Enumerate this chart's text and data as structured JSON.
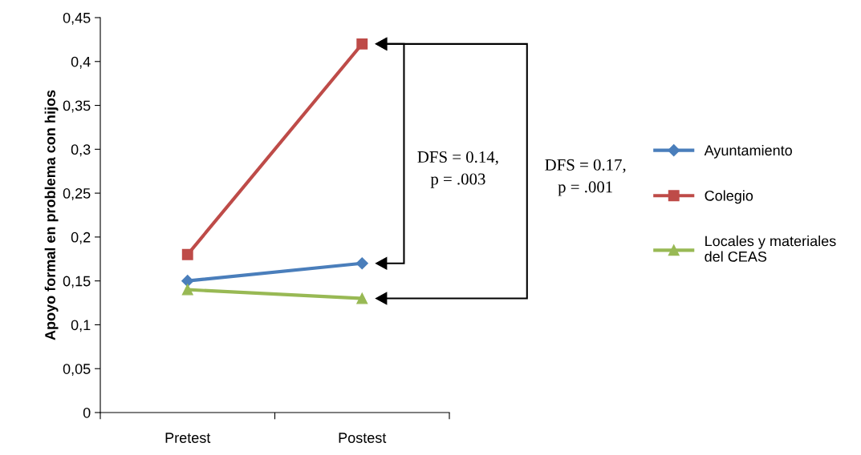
{
  "chart_data": {
    "type": "line",
    "ylabel": "Apoyo formal en problema con hijos",
    "categories": [
      "Pretest",
      "Postest"
    ],
    "series": [
      {
        "name": "Ayuntamiento",
        "color": "#4a7ebb",
        "marker": "diamond",
        "values": [
          0.15,
          0.17
        ]
      },
      {
        "name": "Colegio",
        "color": "#be4b48",
        "marker": "square",
        "values": [
          0.18,
          0.42
        ]
      },
      {
        "name": "Locales y materiales del CEAS",
        "color": "#98b954",
        "marker": "triangle",
        "values": [
          0.14,
          0.13
        ]
      }
    ],
    "ylim": [
      0,
      0.45
    ],
    "yticks": [
      {
        "value": 0,
        "label": "0"
      },
      {
        "value": 0.05,
        "label": "0,05"
      },
      {
        "value": 0.1,
        "label": "0,1"
      },
      {
        "value": 0.15,
        "label": "0,15"
      },
      {
        "value": 0.2,
        "label": "0,2"
      },
      {
        "value": 0.25,
        "label": "0,25"
      },
      {
        "value": 0.3,
        "label": "0,3"
      },
      {
        "value": 0.35,
        "label": "0,35"
      },
      {
        "value": 0.4,
        "label": "0,4"
      },
      {
        "value": 0.45,
        "label": "0,45"
      }
    ],
    "grid": false,
    "legend": "right",
    "line_style": "solid",
    "annotations": [
      "DFS = 0.14,\np = .003",
      "DFS = 0.17,\np = .001"
    ]
  }
}
